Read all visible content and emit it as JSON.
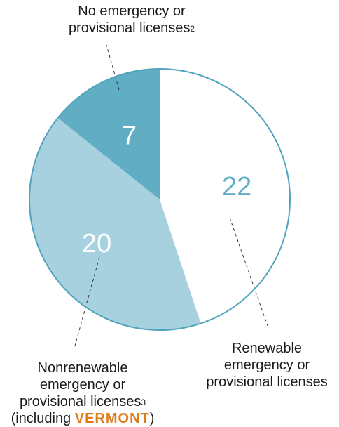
{
  "chart_data": {
    "type": "pie",
    "slices": [
      {
        "value": 22,
        "label_lines": [
          "Renewable",
          "emergency or",
          "provisional licenses"
        ],
        "footnote": "",
        "color": "#ffffff",
        "value_color": "#63aec6"
      },
      {
        "value": 20,
        "label_lines": [
          "Nonrenewable",
          "emergency or",
          "provisional licenses"
        ],
        "footnote": "3",
        "extra_prefix": "(including ",
        "extra_highlight": "VERMONT",
        "extra_suffix": ")",
        "color": "#a8d1e0",
        "value_color": "#ffffff"
      },
      {
        "value": 7,
        "label_lines": [
          "No emergency or",
          "provisional licenses"
        ],
        "footnote": "2",
        "color": "#60adc4",
        "value_color": "#ffffff"
      }
    ],
    "colors": {
      "outline": "#4fa3bd",
      "highlight": "#e07b1d",
      "text": "#1a1a1a"
    }
  }
}
